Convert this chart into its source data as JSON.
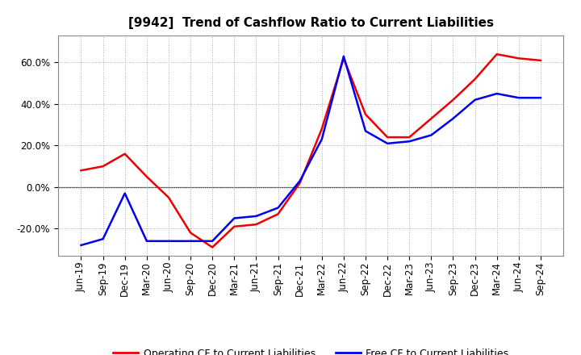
{
  "title": "[9942]  Trend of Cashflow Ratio to Current Liabilities",
  "x_labels": [
    "Jun-19",
    "Sep-19",
    "Dec-19",
    "Mar-20",
    "Jun-20",
    "Sep-20",
    "Dec-20",
    "Mar-21",
    "Jun-21",
    "Sep-21",
    "Dec-21",
    "Mar-22",
    "Jun-22",
    "Sep-22",
    "Dec-22",
    "Mar-23",
    "Jun-23",
    "Sep-23",
    "Dec-23",
    "Mar-24",
    "Jun-24",
    "Sep-24"
  ],
  "operating_cf": [
    0.08,
    0.1,
    0.16,
    0.05,
    -0.05,
    -0.22,
    -0.29,
    -0.19,
    -0.18,
    -0.13,
    0.02,
    0.28,
    0.62,
    0.35,
    0.24,
    0.24,
    0.33,
    0.42,
    0.52,
    0.64,
    0.62,
    0.61
  ],
  "free_cf": [
    -0.28,
    -0.25,
    -0.03,
    -0.26,
    -0.26,
    -0.26,
    -0.26,
    -0.15,
    -0.14,
    -0.1,
    0.03,
    0.23,
    0.63,
    0.27,
    0.21,
    0.22,
    0.25,
    0.33,
    0.42,
    0.45,
    0.43,
    0.43
  ],
  "operating_color": "#ee0000",
  "free_color": "#0000ee",
  "background_color": "#ffffff",
  "plot_bg_color": "#ffffff",
  "ylim": [
    -0.33,
    0.73
  ],
  "yticks": [
    -0.2,
    0.0,
    0.2,
    0.4,
    0.6
  ],
  "legend_op": "Operating CF to Current Liabilities",
  "legend_free": "Free CF to Current Liabilities",
  "title_fontsize": 11,
  "axis_fontsize": 8.5,
  "legend_fontsize": 9
}
